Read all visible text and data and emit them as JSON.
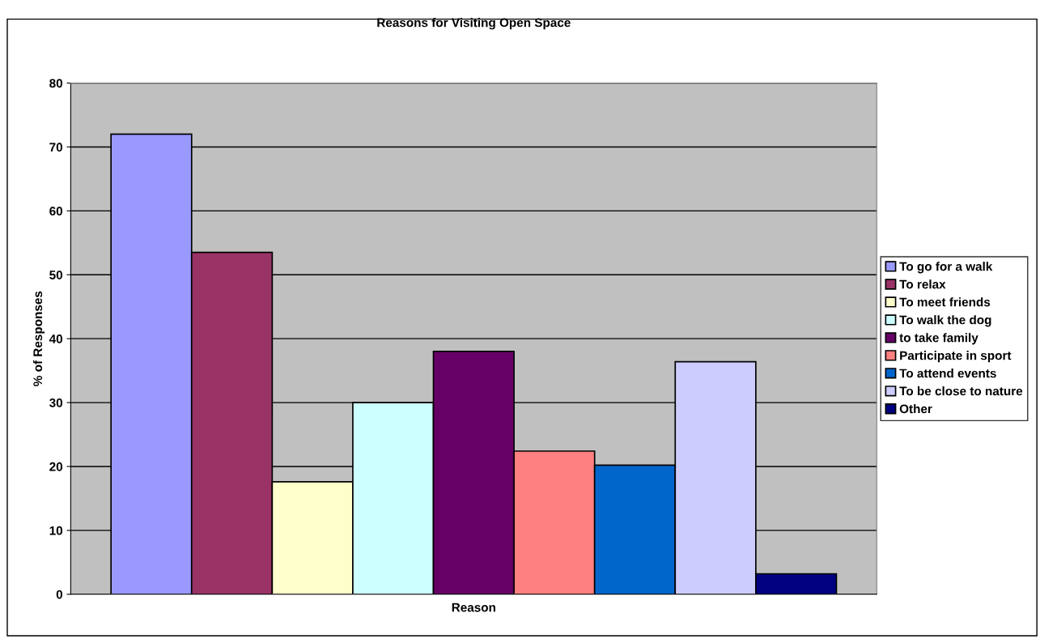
{
  "chart_data": {
    "type": "bar",
    "title": "Reasons for Visiting Open Space",
    "xlabel": "Reason",
    "ylabel": "% of Responses",
    "categories": [
      null
    ],
    "series": [
      {
        "name": "To go for a walk",
        "color": "#9999ff",
        "values": [
          72
        ]
      },
      {
        "name": "To relax",
        "color": "#993366",
        "values": [
          53.5
        ]
      },
      {
        "name": "To meet friends",
        "color": "#ffffcc",
        "values": [
          17.6
        ]
      },
      {
        "name": "To walk the dog",
        "color": "#ccffff",
        "values": [
          30
        ]
      },
      {
        "name": "to take family",
        "color": "#660066",
        "values": [
          38
        ]
      },
      {
        "name": "Participate in sport",
        "color": "#ff8080",
        "values": [
          22.4
        ]
      },
      {
        "name": "To attend events",
        "color": "#0066cc",
        "values": [
          20.2
        ]
      },
      {
        "name": "To be close to nature",
        "color": "#ccccff",
        "values": [
          36.4
        ]
      },
      {
        "name": "Other",
        "color": "#000080",
        "values": [
          3.2
        ]
      }
    ],
    "ylim": [
      0,
      80
    ],
    "yticks": [
      0,
      10,
      20,
      30,
      40,
      50,
      60,
      70,
      80
    ],
    "grid": "y",
    "legend": "right"
  }
}
